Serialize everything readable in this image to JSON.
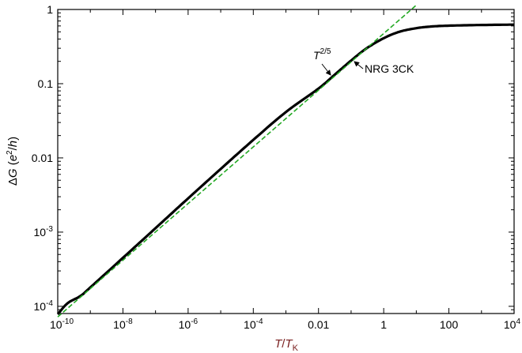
{
  "chart_data": {
    "type": "line",
    "xscale": "log",
    "yscale": "log",
    "xlim": [
      1e-10,
      10000
    ],
    "ylim": [
      8e-05,
      1
    ],
    "xlabel": {
      "main": "T",
      "sep": "/",
      "denom": "T",
      "sub": "K"
    },
    "ylabel": {
      "delta": "Δ",
      "main": "G",
      "unit_open": " (",
      "e": "e",
      "exp": "2",
      "slash": "/",
      "h": "h",
      "unit_close": ")"
    },
    "x_ticks": [
      {
        "value": 1e-10,
        "base": "10",
        "exp": "-10"
      },
      {
        "value": 1e-08,
        "base": "10",
        "exp": "-8"
      },
      {
        "value": 1e-06,
        "base": "10",
        "exp": "-6"
      },
      {
        "value": 0.0001,
        "base": "10",
        "exp": "-4"
      },
      {
        "value": 0.01,
        "label": "0.01"
      },
      {
        "value": 1,
        "label": "1"
      },
      {
        "value": 100,
        "label": "100"
      },
      {
        "value": 10000,
        "base": "10",
        "exp": "4"
      }
    ],
    "y_ticks": [
      {
        "value": 0.0001,
        "base": "10",
        "exp": "-4"
      },
      {
        "value": 0.001,
        "base": "10",
        "exp": "-3"
      },
      {
        "value": 0.01,
        "label": "0.01"
      },
      {
        "value": 0.1,
        "label": "0.1"
      },
      {
        "value": 1,
        "label": "1"
      }
    ],
    "grid": false,
    "series": [
      {
        "name": "NRG 3CK",
        "color": "#000000",
        "style": "solid",
        "x": [
          1e-10,
          2e-10,
          5e-10,
          1e-09,
          1e-08,
          1e-07,
          1e-06,
          1e-05,
          0.0001,
          0.001,
          0.01,
          0.03,
          0.1,
          0.3,
          1,
          3,
          10,
          30,
          100,
          1000,
          10000
        ],
        "y": [
          7.8e-05,
          0.00011,
          0.000138,
          0.00018,
          0.00045,
          0.00113,
          0.00285,
          0.0071,
          0.0175,
          0.0415,
          0.086,
          0.13,
          0.205,
          0.3,
          0.41,
          0.5,
          0.56,
          0.59,
          0.605,
          0.618,
          0.625
        ]
      },
      {
        "name": "T^{2/5}",
        "color": "#22a822",
        "style": "dashed",
        "x": [
          1e-10,
          10
        ],
        "y": [
          7.2e-05,
          1.145
        ]
      }
    ],
    "annotations": [
      {
        "id": "nrg",
        "text": "NRG 3CK",
        "at_x": 0.1,
        "at_y": 0.205,
        "series": 0
      },
      {
        "id": "power",
        "base": "T",
        "exp": "2/5",
        "at_x": 0.05,
        "at_y": 0.53,
        "series": 1
      }
    ]
  }
}
